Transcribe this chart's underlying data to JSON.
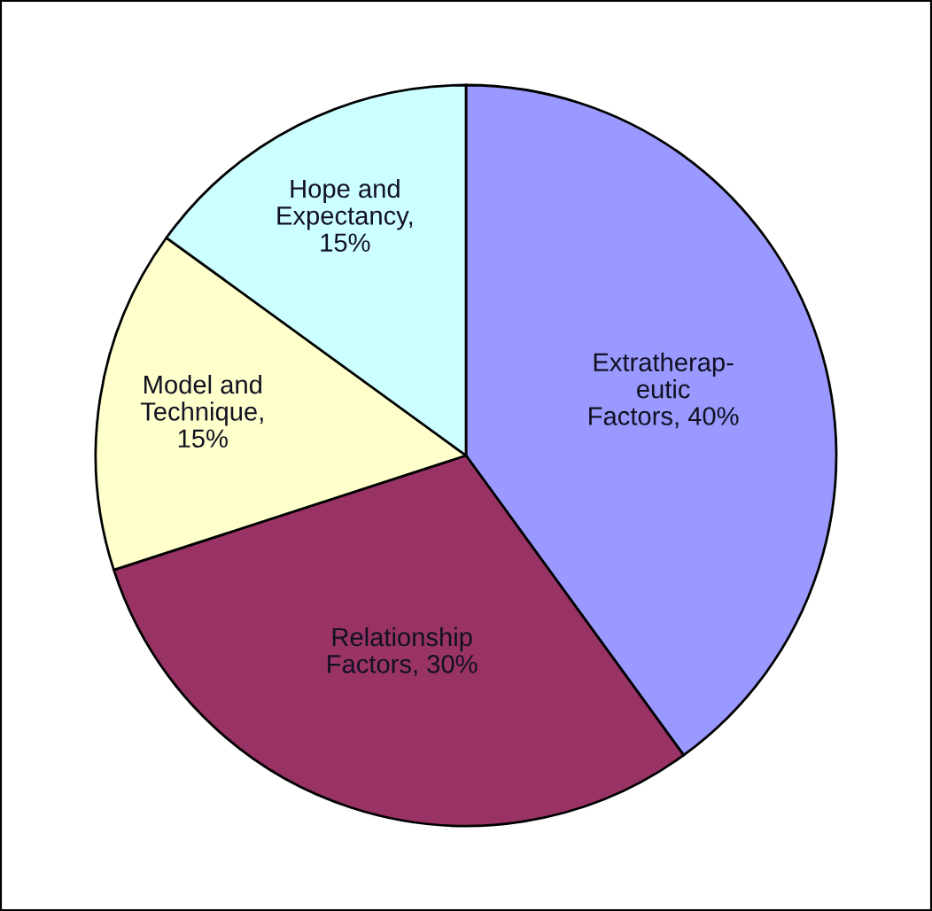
{
  "chart_data": {
    "type": "pie",
    "categories": [
      "Extratherap-\neutic\nFactors, 40%",
      "Relationship\nFactors, 30%",
      "Model and\nTechnique,\n15%",
      "Hope and\nExpectancy,\n15%"
    ],
    "values": [
      40,
      30,
      15,
      15
    ],
    "colors": [
      "#9999ff",
      "#993366",
      "#ffffcc",
      "#ccffff"
    ]
  }
}
